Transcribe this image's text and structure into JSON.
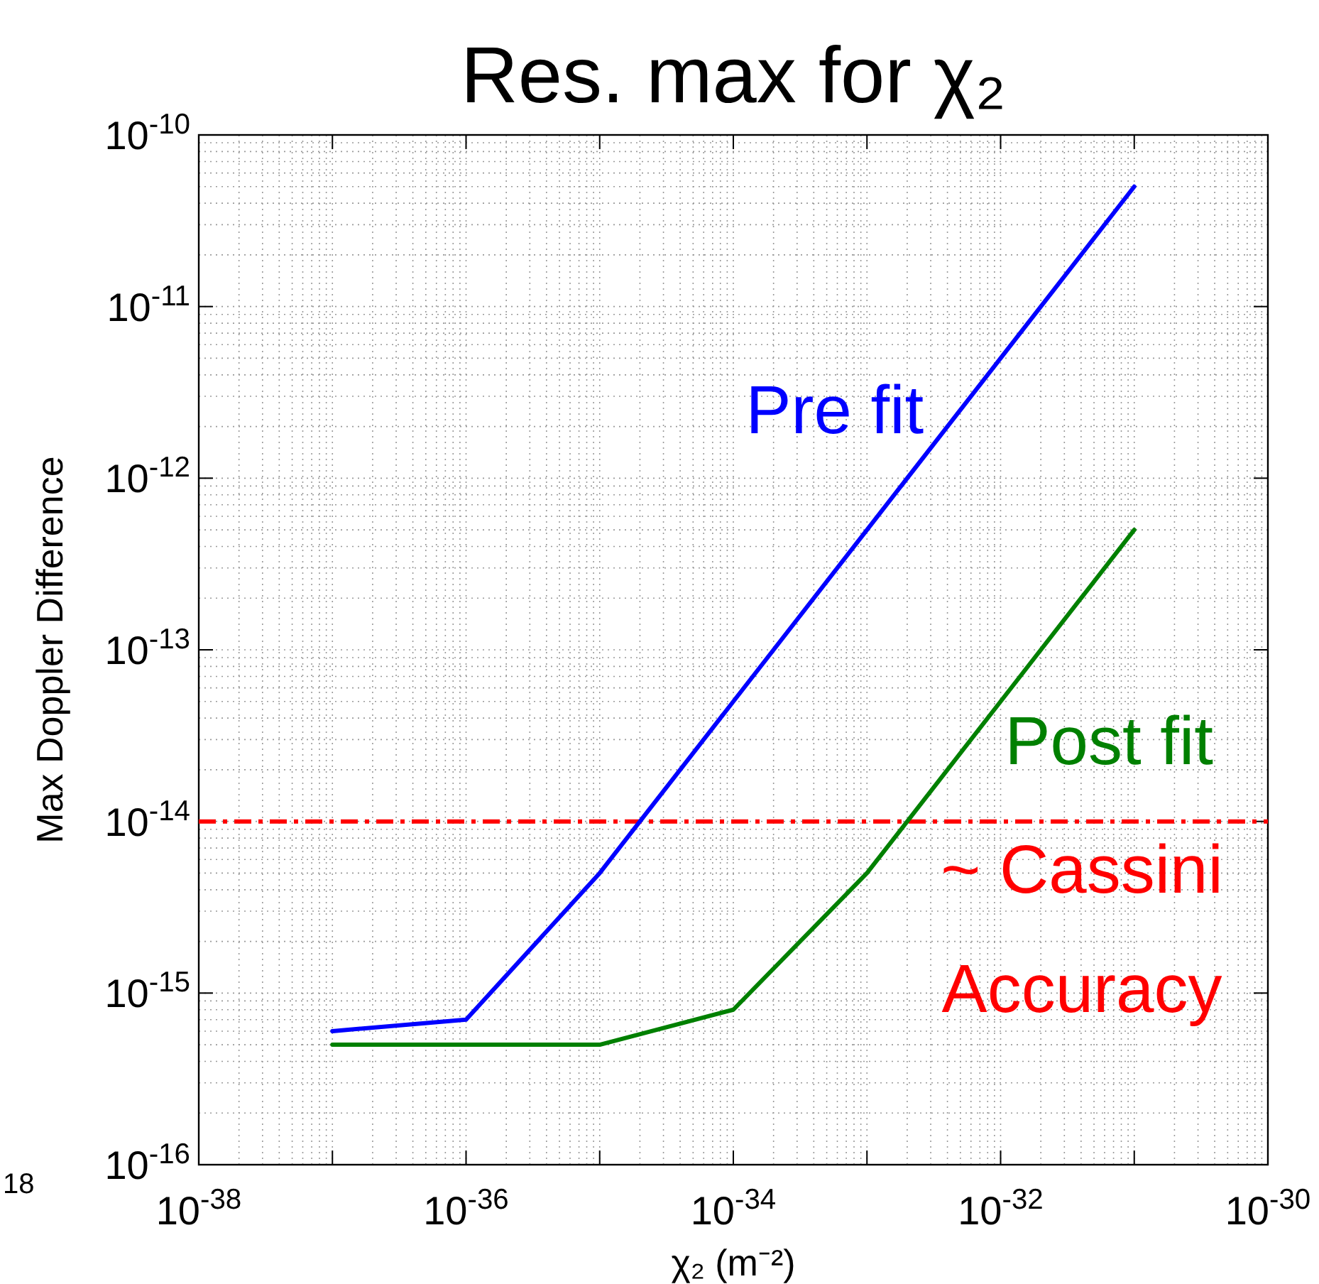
{
  "chart_data": {
    "type": "line",
    "title": "Res. max for χ₂",
    "xlabel": "χ₂ (m⁻²)",
    "ylabel": "Max Doppler Difference",
    "log": "xy",
    "grid": true,
    "legend": false,
    "line_style": "solid",
    "marker": "none",
    "x": [
      1e-37,
      1e-36,
      1e-35,
      1e-34,
      1e-33,
      1e-32,
      1e-31
    ],
    "series": [
      {
        "name": "Pre fit",
        "color": "#0000ff",
        "values": [
          6e-16,
          7e-16,
          5e-15,
          5e-14,
          5e-13,
          5e-12,
          5e-11
        ]
      },
      {
        "name": "Post fit",
        "color": "#008000",
        "values": [
          5e-16,
          5e-16,
          5e-16,
          8e-16,
          5e-15,
          5e-14,
          5e-13
        ]
      }
    ],
    "xlim": [
      1e-38,
      1e-30
    ],
    "xticks": [
      {
        "value": 1e-38,
        "label": "10$^{-38}$"
      },
      {
        "value": 1e-37,
        "label": null
      },
      {
        "value": 1e-36,
        "label": "10$^{-36}$"
      },
      {
        "value": 1e-35,
        "label": null
      },
      {
        "value": 1e-34,
        "label": "10$^{-34}$"
      },
      {
        "value": 1e-33,
        "label": null
      },
      {
        "value": 1e-32,
        "label": "10$^{-32}$"
      },
      {
        "value": 1e-31,
        "label": null
      },
      {
        "value": 1e-30,
        "label": "10$^{-30}$"
      }
    ],
    "ylim": [
      1e-16,
      1e-10
    ],
    "yticks": [
      {
        "value": 1e-16,
        "label": "10$^{-16}$"
      },
      {
        "value": 1e-15,
        "label": "10$^{-15}$"
      },
      {
        "value": 1e-14,
        "label": "10$^{-14}$"
      },
      {
        "value": 1e-13,
        "label": "10$^{-13}$"
      },
      {
        "value": 1e-12,
        "label": "10$^{-12}$"
      },
      {
        "value": 1e-11,
        "label": "10$^{-11}$"
      },
      {
        "value": 1e-10,
        "label": "10$^{-10}$"
      }
    ],
    "ref_lines": [
      {
        "axis": "y",
        "value": 1e-14,
        "label": "~ Cassini Accuracy",
        "color": "#ff0000",
        "line_style": "dashdot"
      }
    ],
    "annotations": [
      "18"
    ]
  }
}
